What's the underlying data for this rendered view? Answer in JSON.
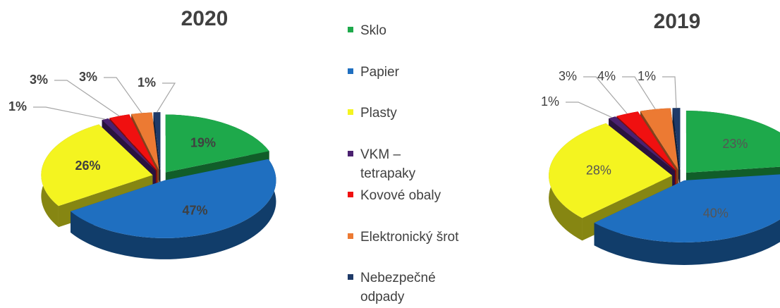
{
  "chart_data": [
    {
      "type": "pie",
      "title": "2020",
      "categories": [
        "Sklo",
        "Papier",
        "Plasty",
        "VKM – tetrapaky",
        "Kovové obaly",
        "Elektronický šrot",
        "Nebezpečné odpady"
      ],
      "values": [
        19,
        47,
        26,
        1,
        3,
        3,
        1
      ],
      "value_labels": [
        "19%",
        "47%",
        "26%",
        "1%",
        "3%",
        "3%",
        "1%"
      ],
      "colors": [
        "#1ea94b",
        "#1f6fc0",
        "#f4f420",
        "#4a2170",
        "#f01010",
        "#ec7a33",
        "#1f3a68"
      ]
    },
    {
      "type": "pie",
      "title": "2019",
      "categories": [
        "Sklo",
        "Papier",
        "Plasty",
        "VKM – tetrapaky",
        "Kovové obaly",
        "Elektronický šrot",
        "Nebezpečné odpady"
      ],
      "values": [
        23,
        40,
        28,
        1,
        3,
        4,
        1
      ],
      "value_labels": [
        "23%",
        "40%",
        "28%",
        "1%",
        "3%",
        "4%",
        "1%"
      ],
      "colors": [
        "#1ea94b",
        "#1f6fc0",
        "#f4f420",
        "#4a2170",
        "#f01010",
        "#ec7a33",
        "#1f3a68"
      ]
    }
  ]
}
